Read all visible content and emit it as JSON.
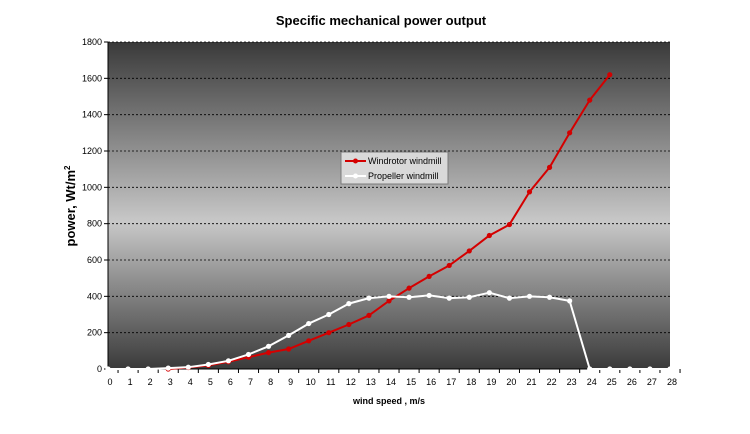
{
  "chart_data": {
    "type": "line",
    "title": "Specific mechanical power output",
    "xlabel": "wind speed  , m/s",
    "ylabel": "power, Wt/m",
    "ylabel_superscript": "2",
    "xlim": [
      0,
      28
    ],
    "ylim": [
      0,
      1800
    ],
    "x_ticks": [
      0,
      1,
      2,
      3,
      4,
      5,
      6,
      7,
      8,
      9,
      10,
      11,
      12,
      13,
      14,
      15,
      16,
      17,
      18,
      19,
      20,
      21,
      22,
      23,
      24,
      25,
      26,
      27,
      28
    ],
    "y_ticks": [
      0,
      200,
      400,
      600,
      800,
      1000,
      1200,
      1400,
      1600,
      1800
    ],
    "grid": "horizontal dashed",
    "legend_position": "center",
    "series": [
      {
        "name": "Windrotor windmill",
        "color": "#d40000",
        "x": [
          3,
          4,
          5,
          6,
          7,
          8,
          9,
          10,
          11,
          12,
          13,
          14,
          15,
          16,
          17,
          18,
          19,
          20,
          21,
          22,
          23,
          24,
          25
        ],
        "values": [
          0,
          8,
          20,
          40,
          65,
          90,
          110,
          155,
          200,
          245,
          295,
          375,
          445,
          510,
          570,
          650,
          735,
          795,
          975,
          1110,
          1300,
          1480,
          1620
        ]
      },
      {
        "name": "Propeller windmill",
        "color": "#ffffff",
        "x": [
          0,
          1,
          2,
          3,
          4,
          5,
          6,
          7,
          8,
          9,
          10,
          11,
          12,
          13,
          14,
          15,
          16,
          17,
          18,
          19,
          20,
          21,
          22,
          23,
          24,
          25,
          26,
          27,
          28
        ],
        "values": [
          0,
          0,
          0,
          5,
          10,
          25,
          45,
          80,
          125,
          185,
          250,
          300,
          360,
          390,
          400,
          395,
          405,
          390,
          395,
          420,
          390,
          400,
          395,
          375,
          0,
          0,
          0,
          0,
          0
        ]
      }
    ]
  }
}
